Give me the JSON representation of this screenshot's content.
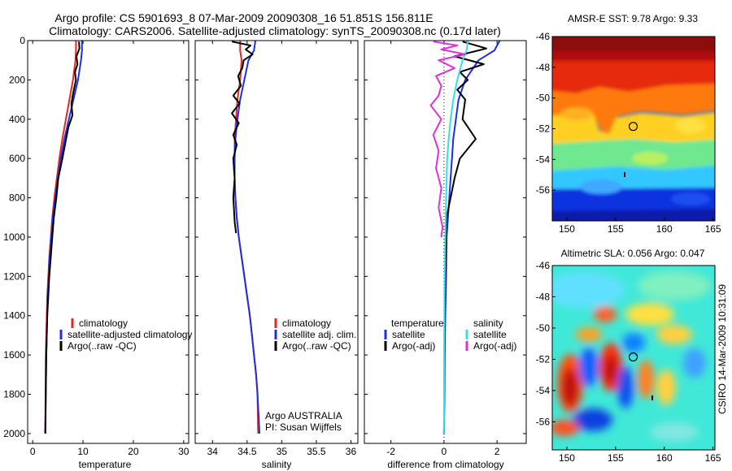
{
  "header": {
    "line1": "Argo profile: CS 5901693_8 07-Mar-2009 20090308_16 51.851S 156.811E",
    "line2": "Climatology: CARS2006. Satellite-adjusted climatology: synTS_20090308.nc (0.17d later)"
  },
  "side_label": "CSIRO 14-Mar-2009 10:31:09",
  "colors": {
    "red": "#e8261c",
    "blue": "#1b2ee8",
    "black": "#000000",
    "cyan": "#33e0e8",
    "magenta": "#e02ee0"
  },
  "chart_data": [
    {
      "id": "temperature",
      "type": "line",
      "xlabel": "temperature",
      "xlim": [
        -1,
        31
      ],
      "ylim": [
        2050,
        0
      ],
      "xticks": [
        0,
        10,
        20,
        30
      ],
      "yticks": [
        0,
        200,
        400,
        600,
        800,
        1000,
        1200,
        1400,
        1600,
        1800,
        2000
      ],
      "legend": [
        "climatology",
        "satellite-adjusted climatology",
        "Argo(..raw -QC)"
      ],
      "series": [
        {
          "name": "climatology",
          "color": "red",
          "x": [
            8.6,
            8.6,
            8.5,
            8.0,
            7.3,
            6.6,
            5.9,
            5.3,
            4.8,
            4.3,
            3.9,
            3.6,
            3.3,
            3.1,
            2.9,
            2.8,
            2.7,
            2.6,
            2.55,
            2.5
          ],
          "y": [
            0,
            50,
            100,
            200,
            300,
            400,
            500,
            600,
            700,
            800,
            900,
            1000,
            1100,
            1200,
            1300,
            1400,
            1500,
            1600,
            1800,
            2000
          ]
        },
        {
          "name": "satellite-adjusted climatology",
          "color": "blue",
          "x": [
            9.8,
            9.8,
            9.6,
            9.0,
            8.1,
            7.2,
            6.3,
            5.6,
            5.0,
            4.5,
            4.0,
            3.7,
            3.4,
            3.2,
            3.0,
            2.9,
            2.8,
            2.7,
            2.6,
            2.5
          ],
          "y": [
            0,
            50,
            100,
            200,
            300,
            400,
            500,
            600,
            700,
            800,
            900,
            1000,
            1100,
            1200,
            1300,
            1400,
            1500,
            1600,
            1800,
            2000
          ]
        },
        {
          "name": "Argo(..raw -QC)",
          "color": "black",
          "x": [
            9.2,
            9.3,
            8.7,
            8.9,
            8.4,
            8.6,
            8.1,
            7.7,
            7.9,
            7.1,
            6.5,
            5.9,
            5.1,
            4.7,
            4.2,
            3.9,
            3.6,
            3.3,
            3.1,
            2.9,
            2.8,
            2.7,
            2.6,
            2.5
          ],
          "y": [
            5,
            40,
            80,
            120,
            160,
            200,
            260,
            320,
            380,
            440,
            520,
            600,
            700,
            800,
            900,
            1000,
            1100,
            1200,
            1300,
            1400,
            1500,
            1600,
            1800,
            2000
          ]
        }
      ]
    },
    {
      "id": "salinity",
      "type": "line",
      "xlabel": "salinity",
      "xlim": [
        33.75,
        36.1
      ],
      "ylim": [
        2050,
        0
      ],
      "xticks": [
        34,
        34.5,
        35,
        35.5,
        36
      ],
      "legend": [
        "climatology",
        "satellite adj. clim.",
        "Argo(..raw -QC)"
      ],
      "annotation": [
        "Argo AUSTRALIA",
        "PI: Susan Wijffels"
      ],
      "series": [
        {
          "name": "climatology",
          "color": "red",
          "x": [
            34.4,
            34.4,
            34.42,
            34.4,
            34.36,
            34.34,
            34.32,
            34.32,
            34.32,
            34.33,
            34.35,
            34.38,
            34.42,
            34.46,
            34.5,
            34.54,
            34.57,
            34.6,
            34.63,
            34.65,
            34.66
          ],
          "y": [
            0,
            50,
            100,
            200,
            300,
            400,
            500,
            600,
            700,
            800,
            900,
            1000,
            1100,
            1200,
            1300,
            1400,
            1500,
            1600,
            1700,
            1800,
            2000
          ]
        },
        {
          "name": "satellite adj. clim.",
          "color": "blue",
          "x": [
            34.62,
            34.6,
            34.52,
            34.46,
            34.4,
            34.36,
            34.33,
            34.32,
            34.32,
            34.33,
            34.35,
            34.38,
            34.42,
            34.46,
            34.5,
            34.54,
            34.57,
            34.6,
            34.63,
            34.65,
            34.68
          ],
          "y": [
            0,
            50,
            100,
            200,
            300,
            400,
            500,
            600,
            700,
            800,
            900,
            1000,
            1100,
            1200,
            1300,
            1400,
            1500,
            1600,
            1700,
            1800,
            2000
          ]
        },
        {
          "name": "Argo(..raw -QC)",
          "color": "black",
          "x": [
            34.28,
            34.55,
            34.48,
            34.58,
            34.45,
            34.43,
            34.37,
            34.41,
            34.3,
            34.39,
            34.28,
            34.38,
            34.3,
            34.35,
            34.3,
            34.32,
            34.3,
            34.31,
            34.32,
            34.34
          ],
          "y": [
            5,
            25,
            45,
            70,
            100,
            140,
            180,
            230,
            280,
            320,
            370,
            420,
            480,
            530,
            600,
            700,
            800,
            860,
            920,
            980
          ]
        }
      ]
    },
    {
      "id": "difference",
      "type": "line",
      "xlabel": "difference from climatology",
      "xlim": [
        -3,
        3.1
      ],
      "ylim": [
        2050,
        0
      ],
      "xticks": [
        -2,
        0,
        2
      ],
      "legend_left_title": "temperature",
      "legend_right_title": "salinity",
      "legend_left": [
        "satellite",
        "Argo(-adj)"
      ],
      "legend_right": [
        "satellite",
        "Argo(-adj)"
      ],
      "series": [
        {
          "name": "temperature satellite",
          "color": "blue",
          "x": [
            2.1,
            1.9,
            1.3,
            0.8,
            0.55,
            0.45,
            0.35,
            0.3,
            0.25,
            0.2,
            0.15,
            0.1,
            0.08,
            0.05,
            0.03,
            0.02,
            0.0
          ],
          "y": [
            0,
            50,
            100,
            200,
            300,
            400,
            500,
            600,
            700,
            800,
            900,
            1000,
            1200,
            1400,
            1600,
            1800,
            2000
          ]
        },
        {
          "name": "temperature Argo(-adj)",
          "color": "black",
          "x": [
            0.7,
            1.6,
            0.4,
            1.5,
            0.6,
            0.9,
            0.5,
            0.8,
            0.7,
            1.2,
            0.6,
            0.4,
            0.1,
            0.05,
            0.02,
            0.0
          ],
          "y": [
            5,
            40,
            80,
            120,
            160,
            200,
            250,
            300,
            400,
            500,
            600,
            700,
            900,
            1200,
            1500,
            2000
          ]
        },
        {
          "name": "salinity satellite",
          "color": "cyan",
          "x": [
            0.9,
            0.85,
            0.7,
            0.5,
            0.35,
            0.25,
            0.18,
            0.12,
            0.08,
            0.05,
            0.03,
            0.01,
            0.0
          ],
          "y": [
            0,
            50,
            100,
            200,
            300,
            400,
            500,
            600,
            800,
            1000,
            1200,
            1500,
            2000
          ]
        },
        {
          "name": "salinity Argo(-adj)",
          "color": "magenta",
          "x": [
            -0.4,
            0.5,
            -0.1,
            0.8,
            -0.2,
            0.4,
            -0.3,
            -0.1,
            -0.2,
            -0.5,
            -0.1,
            -0.4,
            -0.2,
            -0.3,
            -0.1,
            -0.2,
            -0.05,
            -0.1
          ],
          "y": [
            5,
            25,
            45,
            70,
            100,
            140,
            180,
            230,
            280,
            330,
            400,
            480,
            560,
            650,
            750,
            850,
            950,
            1000
          ]
        }
      ]
    },
    {
      "id": "sst-map",
      "type": "heatmap",
      "title": "AMSR-E SST: 9.78 Argo: 9.33",
      "xlim": [
        148.5,
        165.2
      ],
      "ylim": [
        -58,
        -46
      ],
      "xticks": [
        150,
        155,
        160,
        165
      ],
      "yticks": [
        -46,
        -48,
        -50,
        -52,
        -54,
        -56
      ],
      "marker": {
        "lon": 156.811,
        "lat": -51.851
      }
    },
    {
      "id": "sla-map",
      "type": "heatmap",
      "title": "Altimetric SLA: 0.056 Argo: 0.047",
      "xlim": [
        148.5,
        165.2
      ],
      "ylim": [
        -57.8,
        -46
      ],
      "xticks": [
        150,
        155,
        160,
        165
      ],
      "yticks": [
        -46,
        -48,
        -50,
        -52,
        -54,
        -56
      ],
      "marker": {
        "lon": 156.811,
        "lat": -51.851
      }
    }
  ]
}
